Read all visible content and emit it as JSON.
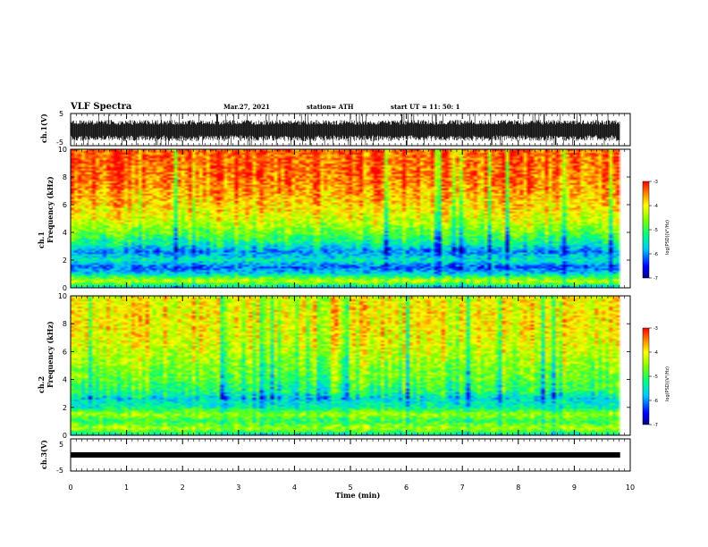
{
  "header": {
    "title": "VLF Spectra",
    "date": "Mar.27, 2021",
    "station": "station= ATH",
    "start": "start  UT =   11: 50: 1"
  },
  "chart_data": [
    {
      "type": "line",
      "panel": "ch1-waveform",
      "ylabel": "ch.1(V)",
      "ylim": [
        -5,
        5
      ],
      "yticks": [
        "5",
        "-5"
      ],
      "xlim": [
        0,
        10
      ],
      "data_until": 9.82,
      "envelope_typical": [
        -3.0,
        2.5
      ],
      "color": "#000000"
    },
    {
      "type": "heatmap",
      "panel": "ch1-spectrogram",
      "ylabel": "ch.1\nFrequency  (kHz)",
      "ylim": [
        0,
        10
      ],
      "yticks": [
        "0",
        "2",
        "4",
        "6",
        "8",
        "10"
      ],
      "xlim": [
        0,
        10
      ],
      "data_until": 9.82,
      "colorbar": {
        "label": "log(PSD)(V²/Hz)",
        "ticks": [
          "-3",
          "-4",
          "-5",
          "-6",
          "-7"
        ],
        "range": [
          -7,
          -3
        ]
      },
      "frequency_profile": [
        {
          "f": 0.0,
          "v": -5.8
        },
        {
          "f": 0.5,
          "v": -4.2
        },
        {
          "f": 1.0,
          "v": -5.6
        },
        {
          "f": 1.5,
          "v": -6.2
        },
        {
          "f": 2.0,
          "v": -5.4
        },
        {
          "f": 2.6,
          "v": -6.0
        },
        {
          "f": 3.2,
          "v": -5.3
        },
        {
          "f": 4.0,
          "v": -4.7
        },
        {
          "f": 5.0,
          "v": -4.1
        },
        {
          "f": 6.5,
          "v": -3.7
        },
        {
          "f": 8.0,
          "v": -3.4
        },
        {
          "f": 10.0,
          "v": -3.3
        }
      ]
    },
    {
      "type": "heatmap",
      "panel": "ch2-spectrogram",
      "ylabel": "ch.2\nFrequency  (kHz)",
      "ylim": [
        0,
        10
      ],
      "yticks": [
        "0",
        "2",
        "4",
        "6",
        "8",
        "10"
      ],
      "xlim": [
        0,
        10
      ],
      "data_until": 9.82,
      "colorbar": {
        "label": "log(PSD)(V²/Hz)",
        "ticks": [
          "-3",
          "-4",
          "-5",
          "-6",
          "-7"
        ],
        "range": [
          -7,
          -3
        ]
      },
      "frequency_profile": [
        {
          "f": 0.0,
          "v": -5.5
        },
        {
          "f": 0.5,
          "v": -4.3
        },
        {
          "f": 1.0,
          "v": -5.0
        },
        {
          "f": 1.5,
          "v": -4.4
        },
        {
          "f": 2.0,
          "v": -5.3
        },
        {
          "f": 2.6,
          "v": -5.6
        },
        {
          "f": 3.2,
          "v": -5.0
        },
        {
          "f": 4.0,
          "v": -4.7
        },
        {
          "f": 5.0,
          "v": -4.5
        },
        {
          "f": 6.5,
          "v": -4.1
        },
        {
          "f": 8.0,
          "v": -3.9
        },
        {
          "f": 10.0,
          "v": -4.0
        }
      ]
    },
    {
      "type": "line",
      "panel": "ch3-waveform",
      "ylabel": "ch.3(V)",
      "ylim": [
        -5,
        5
      ],
      "yticks": [
        "5",
        "-5"
      ],
      "xlim": [
        0,
        10
      ],
      "data_until": 9.82,
      "level": 0.0,
      "color": "#000000"
    }
  ],
  "xaxis": {
    "label": "Time  (min)",
    "ticks": [
      "0",
      "1",
      "2",
      "3",
      "4",
      "5",
      "6",
      "7",
      "8",
      "9",
      "10"
    ]
  }
}
